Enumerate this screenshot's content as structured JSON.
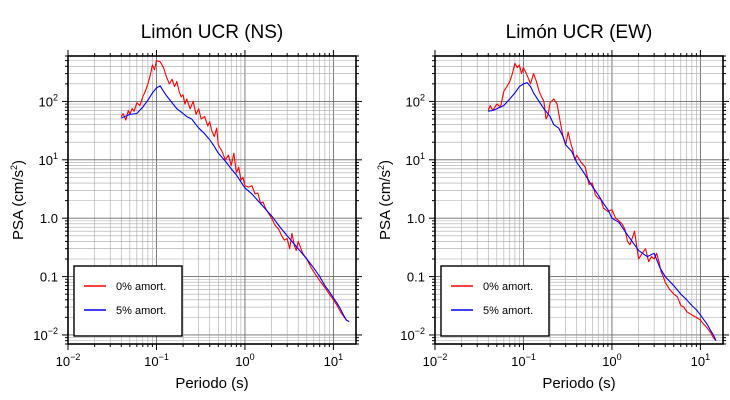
{
  "chart_data": [
    {
      "type": "line",
      "title": "Limón UCR (NS)",
      "xlabel": "Periodo (s)",
      "ylabel": "PSA (cm/s²)",
      "ylabel_main": "PSA (cm/s",
      "ylabel_sup": "2",
      "ylabel_tail": ")",
      "xscale": "log",
      "yscale": "log",
      "xlim": [
        0.01,
        18
      ],
      "ylim": [
        0.007,
        600
      ],
      "grid": true,
      "legend_position": "bottom-left",
      "x_ticks": [
        {
          "base": "10",
          "exp": "−2"
        },
        {
          "base": "10",
          "exp": "−1"
        },
        {
          "base": "10",
          "exp": "0"
        },
        {
          "base": "10",
          "exp": "1"
        }
      ],
      "y_ticks": [
        {
          "label": "10",
          "exp": "−2",
          "mant": "10",
          "tail": ""
        },
        {
          "label": "0.1",
          "exp": "−1",
          "mant": "0.1",
          "tail": ""
        },
        {
          "label": "1.0",
          "exp": "0",
          "mant": "1.0",
          "tail": ""
        },
        {
          "label": "10",
          "exp": "1",
          "mant": "10",
          "tail": ""
        },
        {
          "label": "10",
          "exp": "2",
          "mant": "10",
          "tail": ""
        }
      ],
      "series": [
        {
          "name": "0% amort.",
          "color": "#ff0000",
          "x": [
            0.04,
            0.042,
            0.045,
            0.048,
            0.05,
            0.053,
            0.056,
            0.06,
            0.065,
            0.07,
            0.075,
            0.08,
            0.085,
            0.09,
            0.095,
            0.1,
            0.11,
            0.12,
            0.13,
            0.14,
            0.15,
            0.16,
            0.17,
            0.18,
            0.19,
            0.2,
            0.21,
            0.22,
            0.24,
            0.26,
            0.28,
            0.3,
            0.32,
            0.35,
            0.38,
            0.4,
            0.42,
            0.45,
            0.48,
            0.5,
            0.55,
            0.6,
            0.65,
            0.7,
            0.75,
            0.8,
            0.85,
            0.9,
            0.95,
            1.0,
            1.1,
            1.2,
            1.3,
            1.4,
            1.5,
            1.6,
            1.7,
            1.8,
            2.0,
            2.2,
            2.4,
            2.6,
            2.8,
            3.0,
            3.2,
            3.4,
            3.6,
            3.8,
            4.0,
            4.5,
            5.0,
            5.5,
            6.0,
            7.0,
            8.0,
            9.0,
            10.0,
            11.0,
            12.0,
            13.0,
            14.0,
            15.0
          ],
          "y": [
            55,
            62,
            48,
            70,
            60,
            75,
            68,
            95,
            85,
            120,
            150,
            200,
            280,
            420,
            350,
            500,
            480,
            380,
            260,
            200,
            240,
            180,
            220,
            150,
            120,
            130,
            90,
            110,
            75,
            100,
            60,
            75,
            50,
            55,
            38,
            45,
            32,
            25,
            35,
            18,
            14,
            10,
            12,
            8,
            13,
            6,
            7.5,
            4.5,
            5,
            3.6,
            3.4,
            3.6,
            2.6,
            2.7,
            1.8,
            1.9,
            1.5,
            1.3,
            1.0,
            0.75,
            0.65,
            0.5,
            0.42,
            0.45,
            0.3,
            0.55,
            0.35,
            0.28,
            0.4,
            0.25,
            0.2,
            0.15,
            0.12,
            0.085,
            0.065,
            0.05,
            0.04,
            0.032,
            0.025,
            0.021,
            0.018,
            0.017
          ]
        },
        {
          "name": "5% amort.",
          "color": "#0000ff",
          "x": [
            0.04,
            0.045,
            0.05,
            0.06,
            0.07,
            0.08,
            0.09,
            0.1,
            0.11,
            0.12,
            0.13,
            0.15,
            0.17,
            0.2,
            0.22,
            0.25,
            0.28,
            0.3,
            0.35,
            0.4,
            0.45,
            0.5,
            0.6,
            0.7,
            0.8,
            0.9,
            1.0,
            1.2,
            1.4,
            1.6,
            1.8,
            2.0,
            2.5,
            3.0,
            3.5,
            4.0,
            5.0,
            6.0,
            7.0,
            8.0,
            9.0,
            10.0,
            11.0,
            12.0,
            13.0,
            14.0,
            15.0
          ],
          "y": [
            52,
            56,
            60,
            62,
            80,
            105,
            140,
            170,
            185,
            150,
            125,
            95,
            75,
            62,
            55,
            50,
            40,
            35,
            28,
            22,
            17,
            13,
            9.5,
            7,
            5.5,
            4.2,
            3.3,
            2.6,
            2.0,
            1.6,
            1.3,
            1.1,
            0.7,
            0.5,
            0.38,
            0.3,
            0.2,
            0.14,
            0.1,
            0.07,
            0.055,
            0.043,
            0.035,
            0.028,
            0.022,
            0.018,
            0.017
          ]
        }
      ]
    },
    {
      "type": "line",
      "title": "Limón UCR (EW)",
      "xlabel": "Periodo (s)",
      "ylabel": "PSA (cm/s²)",
      "ylabel_main": "PSA (cm/s",
      "ylabel_sup": "2",
      "ylabel_tail": ")",
      "xscale": "log",
      "yscale": "log",
      "xlim": [
        0.01,
        18
      ],
      "ylim": [
        0.007,
        600
      ],
      "grid": true,
      "legend_position": "bottom-left",
      "x_ticks": [
        {
          "base": "10",
          "exp": "−2"
        },
        {
          "base": "10",
          "exp": "−1"
        },
        {
          "base": "10",
          "exp": "0"
        },
        {
          "base": "10",
          "exp": "1"
        }
      ],
      "y_ticks": [
        {
          "label": "10",
          "exp": "−2",
          "mant": "10",
          "tail": ""
        },
        {
          "label": "0.1",
          "exp": "−1",
          "mant": "0.1",
          "tail": ""
        },
        {
          "label": "1.0",
          "exp": "0",
          "mant": "1.0",
          "tail": ""
        },
        {
          "label": "10",
          "exp": "1",
          "mant": "10",
          "tail": ""
        },
        {
          "label": "10",
          "exp": "2",
          "mant": "10",
          "tail": ""
        }
      ],
      "series": [
        {
          "name": "0% amort.",
          "color": "#ff0000",
          "x": [
            0.04,
            0.042,
            0.045,
            0.05,
            0.055,
            0.06,
            0.065,
            0.07,
            0.075,
            0.08,
            0.085,
            0.09,
            0.095,
            0.1,
            0.11,
            0.12,
            0.13,
            0.14,
            0.15,
            0.16,
            0.17,
            0.18,
            0.19,
            0.2,
            0.22,
            0.24,
            0.26,
            0.28,
            0.3,
            0.32,
            0.34,
            0.36,
            0.38,
            0.4,
            0.45,
            0.5,
            0.55,
            0.6,
            0.65,
            0.7,
            0.75,
            0.8,
            0.9,
            1.0,
            1.1,
            1.2,
            1.3,
            1.4,
            1.5,
            1.6,
            1.8,
            2.0,
            2.2,
            2.4,
            2.6,
            2.8,
            3.0,
            3.2,
            3.4,
            3.6,
            3.8,
            4.0,
            4.5,
            5.0,
            5.5,
            6.0,
            6.5,
            7.0,
            8.0,
            9.0,
            10.0,
            11.0,
            12.0,
            13.0,
            14.0,
            15.0
          ],
          "y": [
            70,
            85,
            70,
            90,
            80,
            150,
            180,
            220,
            300,
            450,
            380,
            420,
            300,
            380,
            280,
            200,
            300,
            220,
            150,
            120,
            100,
            50,
            60,
            95,
            110,
            90,
            45,
            25,
            18,
            30,
            20,
            15,
            10,
            12,
            9,
            7.5,
            3.8,
            4,
            2.5,
            2.2,
            2.1,
            1.5,
            1.3,
            1.4,
            1.0,
            0.9,
            0.8,
            0.65,
            0.4,
            0.35,
            0.6,
            0.2,
            0.25,
            0.3,
            0.18,
            0.22,
            0.2,
            0.25,
            0.18,
            0.12,
            0.1,
            0.08,
            0.06,
            0.05,
            0.045,
            0.032,
            0.03,
            0.025,
            0.022,
            0.02,
            0.018,
            0.015,
            0.013,
            0.011,
            0.009,
            0.008
          ]
        },
        {
          "name": "5% amort.",
          "color": "#0000ff",
          "x": [
            0.04,
            0.045,
            0.05,
            0.06,
            0.07,
            0.08,
            0.09,
            0.1,
            0.11,
            0.12,
            0.13,
            0.15,
            0.17,
            0.2,
            0.22,
            0.25,
            0.28,
            0.3,
            0.35,
            0.4,
            0.45,
            0.5,
            0.6,
            0.7,
            0.8,
            0.9,
            1.0,
            1.2,
            1.4,
            1.6,
            1.8,
            2.0,
            2.5,
            3.0,
            3.5,
            4.0,
            5.0,
            6.0,
            7.0,
            8.0,
            9.0,
            10.0,
            11.0,
            12.0,
            13.0,
            14.0,
            15.0
          ],
          "y": [
            68,
            70,
            75,
            85,
            110,
            140,
            180,
            200,
            210,
            180,
            140,
            100,
            75,
            55,
            40,
            35,
            25,
            18,
            14,
            9,
            7,
            5.5,
            3.5,
            2.5,
            1.8,
            1.4,
            1.0,
            0.85,
            0.6,
            0.45,
            0.35,
            0.28,
            0.22,
            0.25,
            0.14,
            0.1,
            0.07,
            0.05,
            0.04,
            0.032,
            0.027,
            0.022,
            0.018,
            0.015,
            0.012,
            0.01,
            0.008
          ]
        }
      ]
    }
  ]
}
